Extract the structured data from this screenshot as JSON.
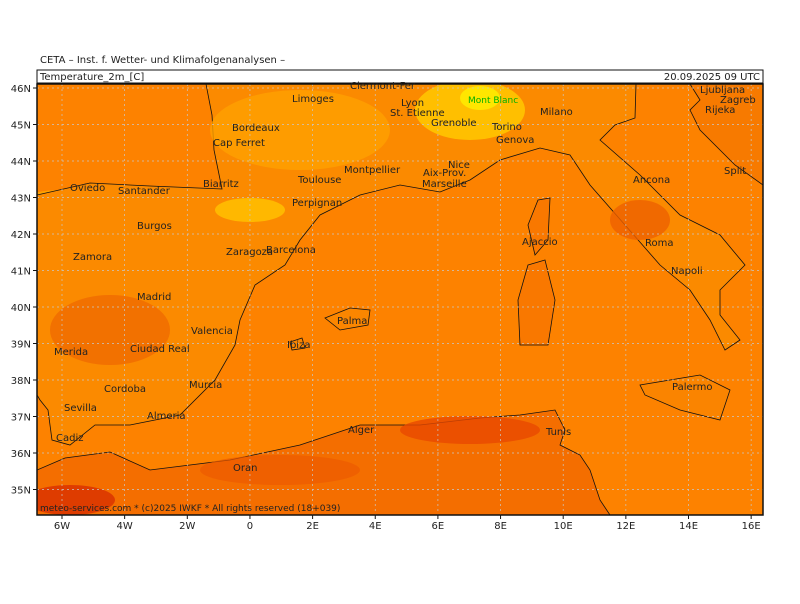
{
  "header": {
    "org": "CETA – Inst. f. Wetter- und Klimafolgenanalysen –",
    "field": "Temperature_2m_[C]",
    "time": "20.09.2025 09 UTC"
  },
  "axes": {
    "lat": [
      "46N",
      "45N",
      "44N",
      "43N",
      "42N",
      "41N",
      "40N",
      "39N",
      "38N",
      "37N",
      "36N",
      "35N"
    ],
    "lon": [
      "6W",
      "4W",
      "2W",
      "0",
      "2E",
      "4E",
      "6E",
      "8E",
      "10E",
      "12E",
      "14E",
      "16E"
    ]
  },
  "cities": [
    {
      "name": "Clermont-Fer"
    },
    {
      "name": "Limoges"
    },
    {
      "name": "Lyon"
    },
    {
      "name": "St. Etienne"
    },
    {
      "name": "Mont Blanc"
    },
    {
      "name": "Grenoble"
    },
    {
      "name": "Milano"
    },
    {
      "name": "Torino"
    },
    {
      "name": "Genova"
    },
    {
      "name": "Bordeaux"
    },
    {
      "name": "Cap Ferret"
    },
    {
      "name": "Montpellier"
    },
    {
      "name": "Toulouse"
    },
    {
      "name": "Nice"
    },
    {
      "name": "Aix-Prov."
    },
    {
      "name": "Marseille"
    },
    {
      "name": "Oviedo"
    },
    {
      "name": "Santander"
    },
    {
      "name": "Biarritz"
    },
    {
      "name": "Perpignan"
    },
    {
      "name": "Burgos"
    },
    {
      "name": "Zaragoza"
    },
    {
      "name": "Barcelona"
    },
    {
      "name": "Zamora"
    },
    {
      "name": "Madrid"
    },
    {
      "name": "Valencia"
    },
    {
      "name": "Merida"
    },
    {
      "name": "Ciudad Real"
    },
    {
      "name": "Palma"
    },
    {
      "name": "Ibiza"
    },
    {
      "name": "Murcia"
    },
    {
      "name": "Cordoba"
    },
    {
      "name": "Sevilla"
    },
    {
      "name": "Almeria"
    },
    {
      "name": "Cadiz"
    },
    {
      "name": "Alger"
    },
    {
      "name": "Oran"
    },
    {
      "name": "Tunis"
    },
    {
      "name": "Palermo"
    },
    {
      "name": "Napoli"
    },
    {
      "name": "Roma"
    },
    {
      "name": "Ajaccio"
    },
    {
      "name": "Ancona"
    },
    {
      "name": "Split"
    },
    {
      "name": "Zagreb"
    },
    {
      "name": "Ljubljana"
    },
    {
      "name": "Rijeka"
    }
  ],
  "footer": {
    "text": "meteo-services.com * (c)2025 IWKF * All rights reserved (18+039)"
  }
}
